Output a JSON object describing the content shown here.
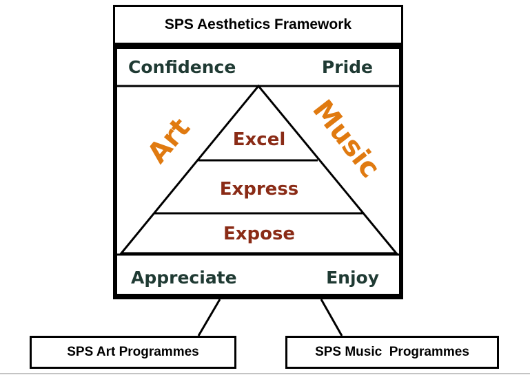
{
  "title": "SPS Aesthetics Framework",
  "top_left": "Confidence",
  "top_right": "Pride",
  "bottom_left": "Appreciate",
  "bottom_right": "Enjoy",
  "side_left": "Art",
  "side_right": "Music",
  "pyramid": {
    "top": "Excel",
    "middle": "Express",
    "bottom": "Expose"
  },
  "programmes": {
    "art": "SPS Art Programmes",
    "music": "SPS Music  Programmes"
  },
  "colors": {
    "corner_text": "#1f3a33",
    "tier_text": "#8a2b16",
    "side_text": "#e07a10",
    "line": "#000000"
  }
}
